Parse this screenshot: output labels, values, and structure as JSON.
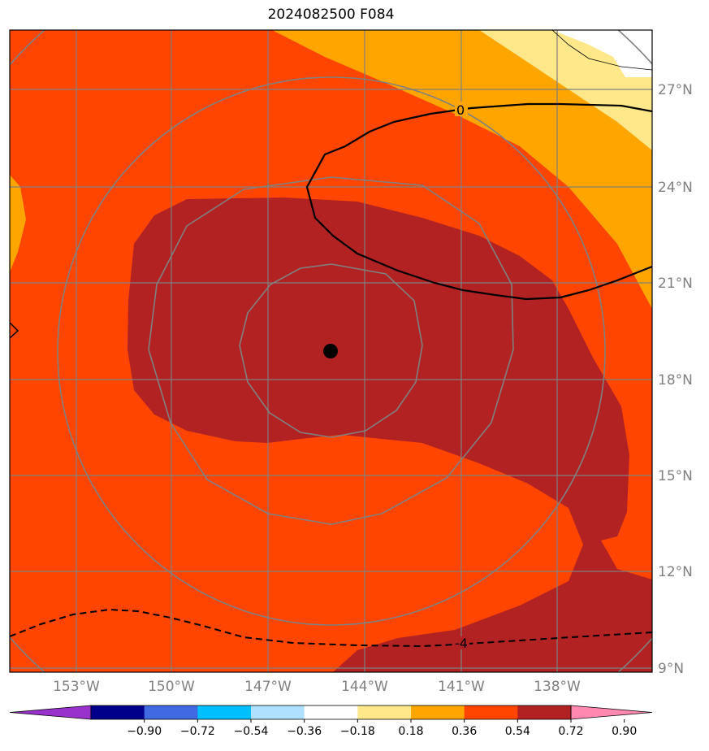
{
  "title": "2024082500 F084",
  "map": {
    "lon_ticks": [
      "153°W",
      "150°W",
      "147°W",
      "144°W",
      "141°W",
      "138°W"
    ],
    "lat_ticks": [
      "27°N",
      "24°N",
      "21°N",
      "18°N",
      "15°N",
      "12°N",
      "9°N"
    ],
    "contour_labels": [
      "0",
      "-4"
    ],
    "storm_center": {
      "lon": -145.0,
      "lat": 18.8
    }
  },
  "colorbar": {
    "ticks": [
      "−0.90",
      "−0.72",
      "−0.54",
      "−0.36",
      "−0.18",
      "0.18",
      "0.36",
      "0.54",
      "0.72",
      "0.90"
    ],
    "colors": [
      "#9932CC",
      "#00008B",
      "#4169E1",
      "#00BFFF",
      "#B0E0FF",
      "#FFFFFF",
      "#FFE88A",
      "#FFA500",
      "#FF4500",
      "#B22222",
      "#FF88B0"
    ]
  },
  "colors": {
    "level_072": "#FF4500",
    "level_090": "#B22222",
    "level_054": "#FFA500",
    "level_036": "#FFE88A",
    "grid": "#808080"
  }
}
